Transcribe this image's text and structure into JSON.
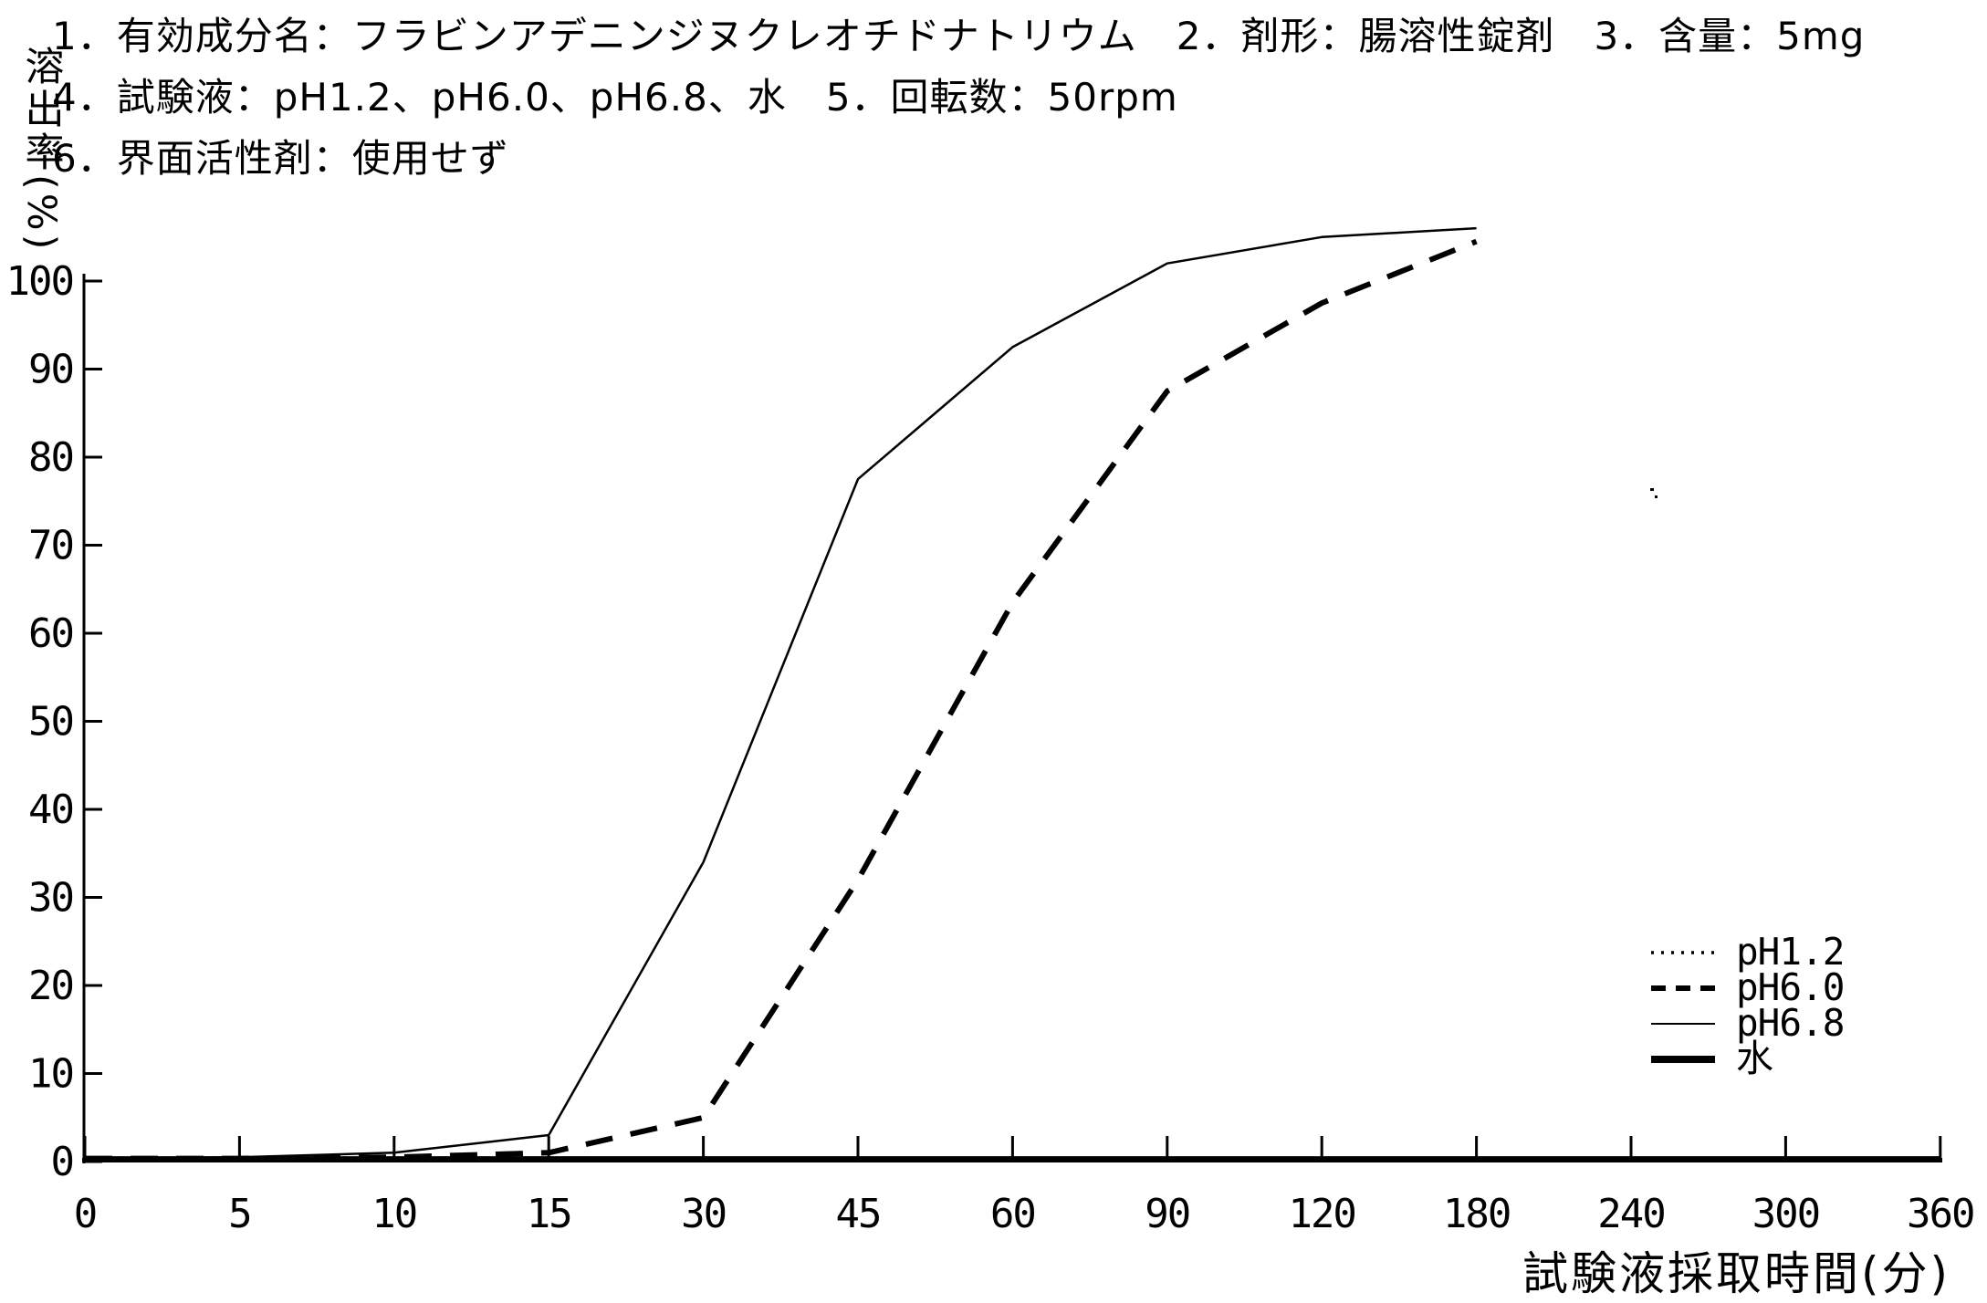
{
  "page": {
    "background": "#ffffff",
    "ink": "#000000"
  },
  "header": {
    "line1": "1．有効成分名：フラビンアデニンジヌクレオチドナトリウム　2．剤形：腸溶性錠剤　3．含量：5mg",
    "line2": "4．試験液：pH1.2、pH6.0、pH6.8、水　5．回転数：50rpm",
    "line3": "6．界面活性剤：使用せず"
  },
  "y_axis": {
    "title": "溶出率(%)",
    "tick_values": [
      100,
      90,
      80,
      70,
      60,
      50,
      40,
      30,
      20,
      10,
      0
    ]
  },
  "x_axis": {
    "title": "試験液採取時間(分)",
    "tick_labels": [
      "0",
      "5",
      "10",
      "15",
      "30",
      "45",
      "60",
      "90",
      "120",
      "180",
      "240",
      "300",
      "360"
    ]
  },
  "legend": {
    "items": [
      {
        "label": "pH1.2",
        "style": "dotted"
      },
      {
        "label": "pH6.0",
        "style": "dashed"
      },
      {
        "label": "pH6.8",
        "style": "thin-solid"
      },
      {
        "label": "水",
        "style": "thick-solid"
      }
    ]
  },
  "chart_data": {
    "type": "line",
    "xlabel": "試験液採取時間(分)",
    "ylabel": "溶出率(%)",
    "x_scale": "categorical-equal-spacing",
    "categories_minutes": [
      0,
      5,
      10,
      15,
      30,
      45,
      60,
      90,
      120,
      180,
      240,
      300,
      360
    ],
    "ylim": [
      0,
      110
    ],
    "grid": false,
    "legend_position": "right-middle",
    "series": [
      {
        "name": "pH1.2",
        "style": "dotted",
        "values": [
          0,
          0,
          0,
          0,
          0,
          0,
          0,
          0,
          0,
          0,
          0,
          0,
          0
        ]
      },
      {
        "name": "pH6.0",
        "style": "dashed",
        "values": [
          0,
          0,
          0.5,
          1,
          5,
          32,
          63.5,
          87.5,
          97.5,
          104.5,
          null,
          null,
          null
        ]
      },
      {
        "name": "pH6.8",
        "style": "thin-solid",
        "values": [
          0,
          0.5,
          1,
          3,
          34,
          77.5,
          92.5,
          102,
          105,
          106,
          null,
          null,
          null
        ]
      },
      {
        "name": "水",
        "style": "thick-solid",
        "values": [
          0,
          0,
          0,
          0,
          0,
          0,
          0,
          0,
          0,
          0,
          0,
          0,
          0
        ]
      }
    ]
  }
}
